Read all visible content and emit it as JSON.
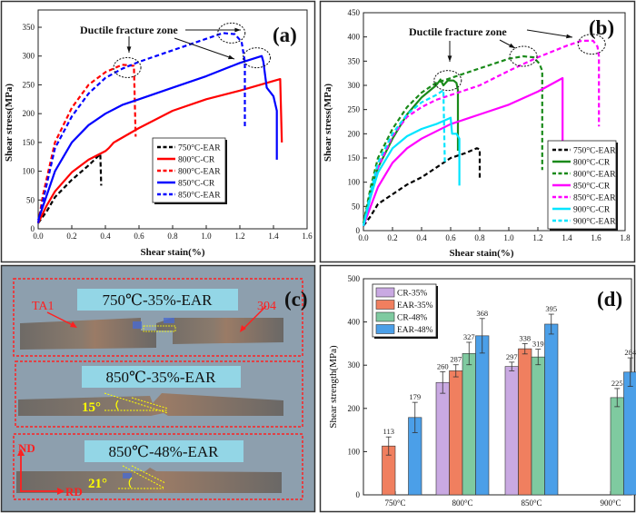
{
  "chart_data": [
    {
      "id": "a",
      "type": "line",
      "panel_label": "(a)",
      "xlabel": "Shear stain(%)",
      "ylabel": "Shear stress(MPa)",
      "xlim": [
        0,
        1.6
      ],
      "ylim": [
        0,
        380
      ],
      "xticks": [
        "0.0",
        "0.2",
        "0.4",
        "0.6",
        "0.8",
        "1.0",
        "1.2",
        "1.4",
        "1.6"
      ],
      "yticks": [
        "0",
        "50",
        "100",
        "150",
        "200",
        "250",
        "300",
        "350"
      ],
      "grid": false,
      "legend_position": "center-right",
      "annotation": "Ductile fracture zone",
      "fracture_zones": [
        [
          0.53,
          280
        ],
        [
          1.15,
          340
        ],
        [
          1.3,
          297
        ]
      ],
      "series": [
        {
          "name": "750°C-EAR",
          "color": "#000000",
          "dashed": true,
          "points": [
            [
              0,
              10
            ],
            [
              0.05,
              30
            ],
            [
              0.1,
              55
            ],
            [
              0.2,
              85
            ],
            [
              0.3,
              110
            ],
            [
              0.37,
              130
            ],
            [
              0.375,
              75
            ]
          ]
        },
        {
          "name": "800°C-CR",
          "color": "#ff0000",
          "dashed": false,
          "points": [
            [
              0,
              10
            ],
            [
              0.05,
              40
            ],
            [
              0.1,
              65
            ],
            [
              0.2,
              98
            ],
            [
              0.3,
              120
            ],
            [
              0.4,
              135
            ],
            [
              0.42,
              140
            ],
            [
              0.45,
              150
            ],
            [
              0.6,
              175
            ],
            [
              0.8,
              205
            ],
            [
              1.0,
              225
            ],
            [
              1.2,
              240
            ],
            [
              1.44,
              260
            ],
            [
              1.45,
              150
            ]
          ]
        },
        {
          "name": "800°C-EAR",
          "color": "#ff0000",
          "dashed": true,
          "points": [
            [
              0,
              10
            ],
            [
              0.03,
              60
            ],
            [
              0.1,
              150
            ],
            [
              0.2,
              210
            ],
            [
              0.3,
              250
            ],
            [
              0.4,
              272
            ],
            [
              0.5,
              285
            ],
            [
              0.57,
              283
            ],
            [
              0.58,
              160
            ]
          ]
        },
        {
          "name": "850°C-CR",
          "color": "#0000ff",
          "dashed": false,
          "points": [
            [
              0,
              15
            ],
            [
              0.03,
              40
            ],
            [
              0.1,
              100
            ],
            [
              0.2,
              150
            ],
            [
              0.3,
              180
            ],
            [
              0.4,
              200
            ],
            [
              0.5,
              215
            ],
            [
              0.6,
              225
            ],
            [
              0.8,
              245
            ],
            [
              1.0,
              265
            ],
            [
              1.2,
              288
            ],
            [
              1.33,
              300
            ],
            [
              1.34,
              290
            ],
            [
              1.36,
              245
            ],
            [
              1.4,
              230
            ],
            [
              1.42,
              205
            ],
            [
              1.42,
              120
            ]
          ]
        },
        {
          "name": "850°C-EAR",
          "color": "#0000ff",
          "dashed": true,
          "points": [
            [
              0,
              10
            ],
            [
              0.03,
              50
            ],
            [
              0.1,
              140
            ],
            [
              0.2,
              195
            ],
            [
              0.3,
              235
            ],
            [
              0.4,
              262
            ],
            [
              0.5,
              278
            ],
            [
              0.6,
              290
            ],
            [
              0.8,
              310
            ],
            [
              1.0,
              330
            ],
            [
              1.1,
              340
            ],
            [
              1.17,
              338
            ],
            [
              1.21,
              325
            ],
            [
              1.23,
              290
            ],
            [
              1.23,
              175
            ]
          ]
        }
      ]
    },
    {
      "id": "b",
      "type": "line",
      "panel_label": "(b)",
      "xlabel": "Shear stain(%)",
      "ylabel": "Shear stress(MPa)",
      "xlim": [
        0,
        1.8
      ],
      "ylim": [
        0,
        450
      ],
      "xticks": [
        "0.0",
        "0.2",
        "0.4",
        "0.6",
        "0.8",
        "1.0",
        "1.2",
        "1.4",
        "1.6",
        "1.8"
      ],
      "yticks": [
        "0",
        "50",
        "100",
        "150",
        "200",
        "250",
        "300",
        "350",
        "400",
        "450"
      ],
      "grid": false,
      "legend_position": "bottom-right",
      "annotation": "Ductile fracture zone",
      "fracture_zones": [
        [
          0.58,
          310
        ],
        [
          1.1,
          360
        ],
        [
          1.57,
          385
        ]
      ],
      "series": [
        {
          "name": "750°C-EAR",
          "color": "#000000",
          "dashed": true,
          "points": [
            [
              0,
              10
            ],
            [
              0.05,
              30
            ],
            [
              0.1,
              55
            ],
            [
              0.2,
              75
            ],
            [
              0.3,
              95
            ],
            [
              0.4,
              110
            ],
            [
              0.5,
              130
            ],
            [
              0.6,
              150
            ],
            [
              0.7,
              160
            ],
            [
              0.78,
              170
            ],
            [
              0.8,
              168
            ],
            [
              0.8,
              105
            ]
          ]
        },
        {
          "name": "800°C-CR",
          "color": "#1a8a1a",
          "dashed": false,
          "points": [
            [
              0,
              15
            ],
            [
              0.05,
              80
            ],
            [
              0.1,
              130
            ],
            [
              0.2,
              190
            ],
            [
              0.3,
              240
            ],
            [
              0.4,
              275
            ],
            [
              0.5,
              300
            ],
            [
              0.53,
              312
            ],
            [
              0.55,
              300
            ],
            [
              0.58,
              310
            ],
            [
              0.62,
              310
            ],
            [
              0.64,
              305
            ],
            [
              0.65,
              290
            ],
            [
              0.65,
              165
            ]
          ]
        },
        {
          "name": "800°C-EAR",
          "color": "#1a8a1a",
          "dashed": true,
          "points": [
            [
              0,
              15
            ],
            [
              0.05,
              90
            ],
            [
              0.1,
              150
            ],
            [
              0.2,
              210
            ],
            [
              0.3,
              255
            ],
            [
              0.4,
              285
            ],
            [
              0.5,
              305
            ],
            [
              0.6,
              315
            ],
            [
              0.8,
              335
            ],
            [
              1.0,
              355
            ],
            [
              1.1,
              360
            ],
            [
              1.17,
              358
            ],
            [
              1.21,
              345
            ],
            [
              1.23,
              330
            ],
            [
              1.23,
              125
            ]
          ]
        },
        {
          "name": "850°C-CR",
          "color": "#ff00ff",
          "dashed": false,
          "points": [
            [
              0,
              10
            ],
            [
              0.05,
              50
            ],
            [
              0.1,
              90
            ],
            [
              0.2,
              140
            ],
            [
              0.3,
              170
            ],
            [
              0.4,
              190
            ],
            [
              0.5,
              205
            ],
            [
              0.6,
              220
            ],
            [
              0.8,
              240
            ],
            [
              1.0,
              260
            ],
            [
              1.2,
              287
            ],
            [
              1.37,
              315
            ],
            [
              1.37,
              150
            ]
          ]
        },
        {
          "name": "850°C-EAR",
          "color": "#ff00ff",
          "dashed": true,
          "points": [
            [
              0,
              10
            ],
            [
              0.05,
              70
            ],
            [
              0.1,
              130
            ],
            [
              0.2,
              195
            ],
            [
              0.3,
              235
            ],
            [
              0.4,
              255
            ],
            [
              0.5,
              270
            ],
            [
              0.6,
              280
            ],
            [
              0.8,
              300
            ],
            [
              1.0,
              330
            ],
            [
              1.2,
              358
            ],
            [
              1.4,
              382
            ],
            [
              1.5,
              392
            ],
            [
              1.58,
              392
            ],
            [
              1.61,
              380
            ],
            [
              1.62,
              360
            ],
            [
              1.62,
              215
            ]
          ]
        },
        {
          "name": "900°C-CR",
          "color": "#00e5ff",
          "dashed": false,
          "points": [
            [
              0,
              10
            ],
            [
              0.05,
              70
            ],
            [
              0.1,
              120
            ],
            [
              0.2,
              170
            ],
            [
              0.3,
              195
            ],
            [
              0.4,
              210
            ],
            [
              0.5,
              220
            ],
            [
              0.6,
              233
            ],
            [
              0.61,
              200
            ],
            [
              0.64,
              200
            ],
            [
              0.66,
              190
            ],
            [
              0.66,
              93
            ]
          ]
        },
        {
          "name": "900°C-EAR",
          "color": "#00e5ff",
          "dashed": true,
          "points": [
            [
              0,
              10
            ],
            [
              0.05,
              80
            ],
            [
              0.1,
              140
            ],
            [
              0.2,
              200
            ],
            [
              0.3,
              240
            ],
            [
              0.4,
              265
            ],
            [
              0.5,
              280
            ],
            [
              0.55,
              290
            ],
            [
              0.56,
              140
            ]
          ]
        }
      ]
    },
    {
      "id": "d",
      "type": "bar",
      "panel_label": "(d)",
      "xlabel": "",
      "ylabel": "Shear strength(MPa)",
      "ylim": [
        0,
        500
      ],
      "yticks": [
        "0",
        "100",
        "200",
        "300",
        "400",
        "500"
      ],
      "grid": false,
      "legend_position": "top-left",
      "categories": [
        "750°C",
        "800°C",
        "850°C",
        "900°C"
      ],
      "series": [
        {
          "name": "CR-35%",
          "color": "#c9a9e2",
          "values": [
            null,
            260,
            297,
            null
          ],
          "errors": [
            null,
            25,
            10,
            null
          ]
        },
        {
          "name": "EAR-35%",
          "color": "#f07f5f",
          "values": [
            113,
            287,
            338,
            null
          ],
          "errors": [
            21,
            14,
            12,
            null
          ]
        },
        {
          "name": "CR-48%",
          "color": "#7fcaa0",
          "values": [
            null,
            327,
            319,
            225
          ],
          "errors": [
            null,
            26,
            18,
            21
          ]
        },
        {
          "name": "EAR-48%",
          "color": "#4b9fe8",
          "values": [
            179,
            368,
            395,
            284
          ],
          "errors": [
            35,
            40,
            23,
            33
          ]
        }
      ]
    }
  ],
  "panel_c": {
    "panel_label": "(c)",
    "samples": [
      {
        "label": "750℃-35%-EAR"
      },
      {
        "label": "850℃-35%-EAR",
        "angle": "15°"
      },
      {
        "label": "850℃-48%-EAR",
        "angle": "21°"
      }
    ],
    "material_left": "TA1",
    "material_right": "304",
    "axis_nd": "ND",
    "axis_rd": "RD",
    "colors": {
      "background": "#8d9fae",
      "label_box": "#93d6e6",
      "frame": "#ff2020",
      "angle": "#ffff00"
    }
  }
}
